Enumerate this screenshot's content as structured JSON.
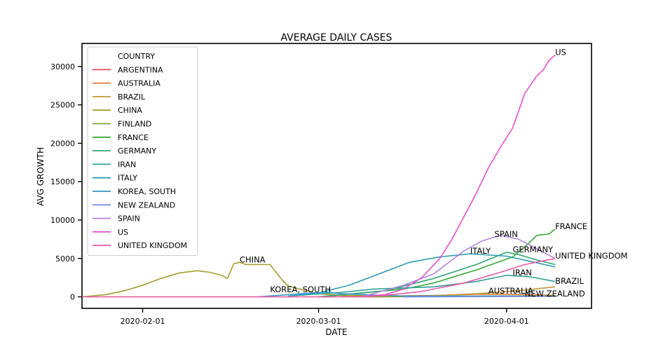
{
  "chart_data": {
    "type": "line",
    "title": "AVERAGE DAILY CASES",
    "xlabel": "DATE",
    "ylabel": "AVG GROWTH",
    "x_range": [
      "2020-01-22",
      "2020-04-15"
    ],
    "ylim": [
      -1500,
      33000
    ],
    "x_ticks": [
      {
        "date": "2020-02-01",
        "label": "2020-02-01"
      },
      {
        "date": "2020-03-01",
        "label": "2020-03-01"
      },
      {
        "date": "2020-04-01",
        "label": "2020-04-01"
      }
    ],
    "y_ticks": [
      0,
      5000,
      10000,
      15000,
      20000,
      25000,
      30000
    ],
    "grid": false,
    "legend": {
      "title": "COUNTRY",
      "placement": "upper-left"
    },
    "series": [
      {
        "name": "ARGENTINA",
        "color": "#e8526b",
        "points": [
          [
            "2020-03-08",
            0
          ],
          [
            "2020-04-09",
            80
          ]
        ]
      },
      {
        "name": "AUSTRALIA",
        "color": "#e0793a",
        "points": [
          [
            "2020-03-01",
            0
          ],
          [
            "2020-03-20",
            180
          ],
          [
            "2020-03-27",
            330
          ],
          [
            "2020-04-02",
            330
          ],
          [
            "2020-04-09",
            200
          ]
        ]
      },
      {
        "name": "BRAZIL",
        "color": "#c09a36",
        "points": [
          [
            "2020-03-08",
            0
          ],
          [
            "2020-03-20",
            150
          ],
          [
            "2020-03-27",
            400
          ],
          [
            "2020-04-03",
            800
          ],
          [
            "2020-04-09",
            1300
          ]
        ]
      },
      {
        "name": "CHINA",
        "color": "#a59e2e",
        "points": [
          [
            "2020-01-22",
            0
          ],
          [
            "2020-01-26",
            300
          ],
          [
            "2020-01-29",
            800
          ],
          [
            "2020-02-01",
            1500
          ],
          [
            "2020-02-04",
            2400
          ],
          [
            "2020-02-07",
            3100
          ],
          [
            "2020-02-10",
            3400
          ],
          [
            "2020-02-12",
            3200
          ],
          [
            "2020-02-14",
            2800
          ],
          [
            "2020-02-15",
            2400
          ],
          [
            "2020-02-16",
            4300
          ],
          [
            "2020-02-17",
            4500
          ],
          [
            "2020-02-18",
            4200
          ],
          [
            "2020-02-22",
            4200
          ],
          [
            "2020-02-24",
            2200
          ],
          [
            "2020-02-25",
            1400
          ],
          [
            "2020-02-27",
            1000
          ],
          [
            "2020-03-01",
            400
          ],
          [
            "2020-03-05",
            200
          ],
          [
            "2020-03-15",
            100
          ],
          [
            "2020-04-09",
            80
          ]
        ]
      },
      {
        "name": "FINLAND",
        "color": "#84a536",
        "points": [
          [
            "2020-03-08",
            0
          ],
          [
            "2020-04-09",
            150
          ]
        ]
      },
      {
        "name": "FRANCE",
        "color": "#3aac3a",
        "points": [
          [
            "2020-03-01",
            0
          ],
          [
            "2020-03-15",
            1000
          ],
          [
            "2020-03-20",
            1800
          ],
          [
            "2020-03-27",
            3500
          ],
          [
            "2020-04-02",
            5200
          ],
          [
            "2020-04-04",
            6500
          ],
          [
            "2020-04-06",
            8000
          ],
          [
            "2020-04-08",
            8200
          ],
          [
            "2020-04-09",
            8800
          ]
        ]
      },
      {
        "name": "GERMANY",
        "color": "#32a574",
        "points": [
          [
            "2020-03-01",
            0
          ],
          [
            "2020-03-12",
            800
          ],
          [
            "2020-03-20",
            2400
          ],
          [
            "2020-03-27",
            4200
          ],
          [
            "2020-04-01",
            5800
          ],
          [
            "2020-04-03",
            5500
          ],
          [
            "2020-04-06",
            4800
          ],
          [
            "2020-04-09",
            4200
          ]
        ]
      },
      {
        "name": "IRAN",
        "color": "#2fa196",
        "points": [
          [
            "2020-02-25",
            100
          ],
          [
            "2020-03-05",
            600
          ],
          [
            "2020-03-10",
            1000
          ],
          [
            "2020-03-20",
            1300
          ],
          [
            "2020-03-27",
            2000
          ],
          [
            "2020-04-01",
            2800
          ],
          [
            "2020-04-05",
            2600
          ],
          [
            "2020-04-09",
            2000
          ]
        ]
      },
      {
        "name": "ITALY",
        "color": "#2f9eb1",
        "points": [
          [
            "2020-02-25",
            100
          ],
          [
            "2020-03-01",
            500
          ],
          [
            "2020-03-06",
            1500
          ],
          [
            "2020-03-11",
            3000
          ],
          [
            "2020-03-16",
            4500
          ],
          [
            "2020-03-21",
            5200
          ],
          [
            "2020-03-26",
            5600
          ],
          [
            "2020-04-01",
            5300
          ],
          [
            "2020-04-09",
            3900
          ]
        ]
      },
      {
        "name": "KOREA, SOUTH",
        "color": "#3396c6",
        "points": [
          [
            "2020-02-20",
            0
          ],
          [
            "2020-02-27",
            400
          ],
          [
            "2020-03-02",
            600
          ],
          [
            "2020-03-05",
            400
          ],
          [
            "2020-03-15",
            100
          ],
          [
            "2020-04-09",
            100
          ]
        ]
      },
      {
        "name": "NEW ZEALAND",
        "color": "#7a8ee0",
        "points": [
          [
            "2020-03-15",
            0
          ],
          [
            "2020-04-09",
            60
          ]
        ]
      },
      {
        "name": "SPAIN",
        "color": "#b482e3",
        "points": [
          [
            "2020-03-08",
            0
          ],
          [
            "2020-03-15",
            1500
          ],
          [
            "2020-03-20",
            3000
          ],
          [
            "2020-03-25",
            6000
          ],
          [
            "2020-03-28",
            7300
          ],
          [
            "2020-03-31",
            8000
          ],
          [
            "2020-04-03",
            7500
          ],
          [
            "2020-04-09",
            5000
          ]
        ]
      },
      {
        "name": "US",
        "color": "#e450d3",
        "points": [
          [
            "2020-03-08",
            0
          ],
          [
            "2020-03-12",
            300
          ],
          [
            "2020-03-15",
            1000
          ],
          [
            "2020-03-18",
            2500
          ],
          [
            "2020-03-21",
            5000
          ],
          [
            "2020-03-23",
            7500
          ],
          [
            "2020-03-25",
            10500
          ],
          [
            "2020-03-27",
            13500
          ],
          [
            "2020-03-29",
            16800
          ],
          [
            "2020-03-31",
            19500
          ],
          [
            "2020-04-02",
            22000
          ],
          [
            "2020-04-04",
            26500
          ],
          [
            "2020-04-06",
            28800
          ],
          [
            "2020-04-07",
            29500
          ],
          [
            "2020-04-08",
            30800
          ],
          [
            "2020-04-09",
            31500
          ]
        ]
      },
      {
        "name": "UNITED KINGDOM",
        "color": "#ea5aa8",
        "points": [
          [
            "2020-01-22",
            0
          ],
          [
            "2020-03-08",
            0
          ],
          [
            "2020-03-12",
            200
          ],
          [
            "2020-03-18",
            700
          ],
          [
            "2020-03-25",
            1800
          ],
          [
            "2020-03-31",
            3200
          ],
          [
            "2020-04-04",
            4200
          ],
          [
            "2020-04-09",
            5000
          ]
        ]
      }
    ],
    "annotations": [
      {
        "text": "CHINA",
        "date": "2020-02-17",
        "value": 4500
      },
      {
        "text": "KOREA, SOUTH",
        "date": "2020-02-22",
        "value": 600
      },
      {
        "text": "ITALY",
        "date": "2020-03-26",
        "value": 5600
      },
      {
        "text": "SPAIN",
        "date": "2020-03-30",
        "value": 7800
      },
      {
        "text": "GERMANY",
        "date": "2020-04-02",
        "value": 5800
      },
      {
        "text": "IRAN",
        "date": "2020-04-02",
        "value": 2800
      },
      {
        "text": "AUSTRALIA",
        "date": "2020-03-29",
        "value": 400
      },
      {
        "text": "NEW ZEALAND",
        "date": "2020-04-04",
        "value": 60
      },
      {
        "text": "US",
        "date": "2020-04-09",
        "value": 31500
      },
      {
        "text": "FRANCE",
        "date": "2020-04-09",
        "value": 8800
      },
      {
        "text": "UNITED KINGDOM",
        "date": "2020-04-09",
        "value": 5000
      },
      {
        "text": "BRAZIL",
        "date": "2020-04-09",
        "value": 1700
      }
    ]
  }
}
